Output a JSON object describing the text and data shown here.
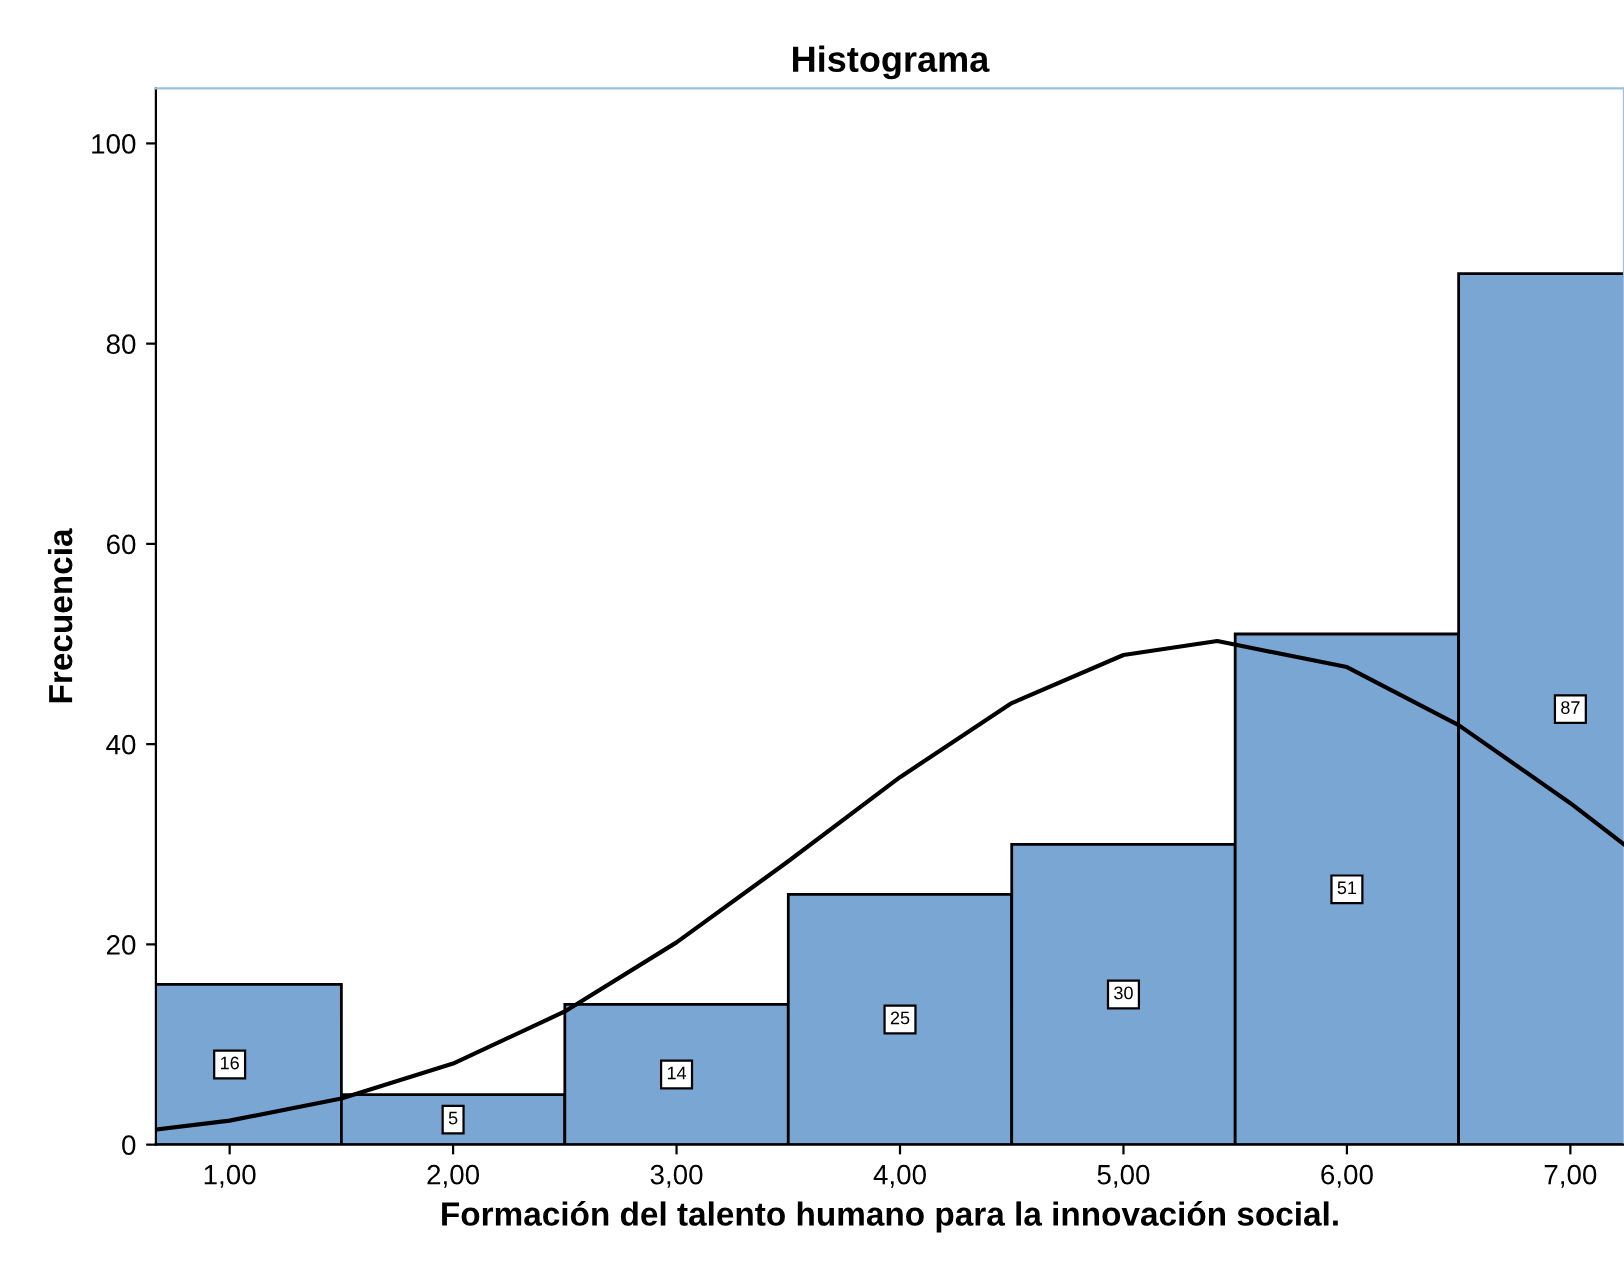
{
  "chart_data": {
    "type": "histogram",
    "title": "Histograma",
    "xlabel": "Formación del talento humano para la innovación social.",
    "ylabel": "Frecuencia",
    "bins": [
      0.5,
      1.5,
      2.5,
      3.5,
      4.5,
      5.5,
      6.5,
      7.5
    ],
    "values": [
      16,
      5,
      14,
      25,
      30,
      51,
      87
    ],
    "color": "#7aa6d4",
    "value_labels": [
      "16",
      "5",
      "14",
      "25",
      "30",
      "51",
      "87"
    ],
    "series": [
      {
        "type": "line",
        "color": "#000000",
        "x": [
          0.67,
          1.0,
          1.5,
          2.0,
          2.5,
          3.0,
          3.5,
          4.0,
          4.5,
          5.0,
          5.42,
          6.0,
          6.5,
          7.0,
          7.24
        ],
        "values": [
          1.5,
          2.4,
          4.6,
          8.1,
          13.3,
          20.2,
          28.3,
          36.7,
          44.1,
          48.9,
          50.3,
          47.7,
          41.9,
          34.1,
          30.0
        ]
      }
    ],
    "xlim": [
      0.67,
      7.24
    ],
    "ylim": [
      0,
      105.5
    ],
    "xticks": [
      {
        "value": 1,
        "label": "1,00"
      },
      {
        "value": 2,
        "label": "2,00"
      },
      {
        "value": 3,
        "label": "3,00"
      },
      {
        "value": 4,
        "label": "4,00"
      },
      {
        "value": 5,
        "label": "5,00"
      },
      {
        "value": 6,
        "label": "6,00"
      },
      {
        "value": 7,
        "label": "7,00"
      }
    ],
    "yticks": [
      0,
      20,
      40,
      60,
      80,
      100
    ],
    "grid": false,
    "legend": false
  }
}
